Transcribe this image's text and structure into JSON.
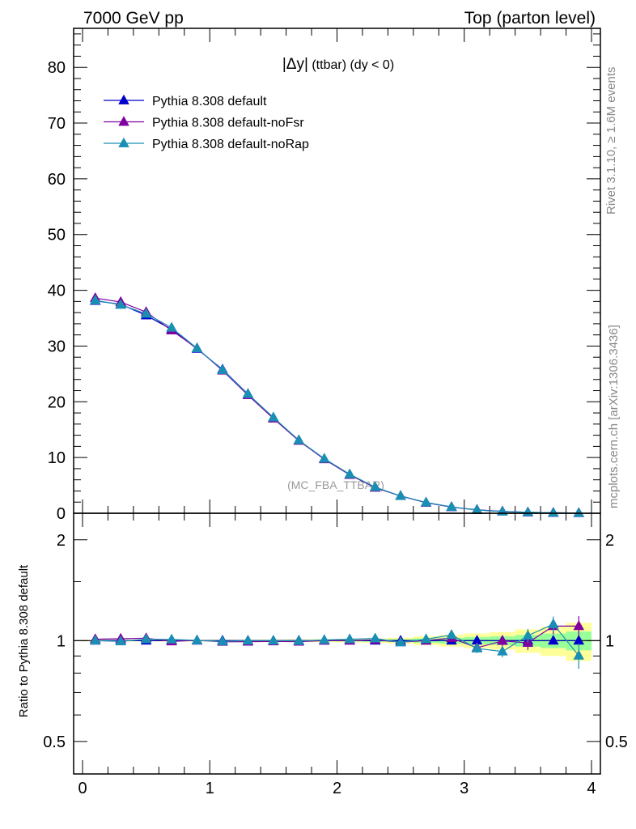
{
  "header": {
    "left": "7000 GeV pp",
    "right": "Top (parton level)"
  },
  "side": {
    "rivet": "Rivet 3.1.10, ≥ 1.6M events",
    "mcplots": "mcplots.cern.ch [arXiv:1306.3436]"
  },
  "title": {
    "main": "|Δy|",
    "sub": " (ttbar) (dy < 0)"
  },
  "watermark": "(MC_FBA_TTBAR)",
  "ratio_ylabel": "Ratio to Pythia 8.308 default",
  "colors": {
    "default": "#0000cc",
    "noFsr": "#8000a0",
    "noRap": "#1a8fb4",
    "band_yellow": "#ffff99",
    "band_green": "#99ff99"
  },
  "chart_data": [
    {
      "type": "line",
      "title": "|Δy| (ttbar) (dy < 0)",
      "xlabel": "",
      "ylabel": "",
      "xlim": [
        -0.07,
        4.07
      ],
      "ylim": [
        0,
        87
      ],
      "x_ticks": [
        "0",
        "1",
        "2",
        "3",
        "4"
      ],
      "y_ticks": [
        "0",
        "10",
        "20",
        "30",
        "40",
        "50",
        "60",
        "70",
        "80"
      ],
      "legend": "top-left",
      "x": [
        0.1,
        0.3,
        0.5,
        0.7,
        0.9,
        1.1,
        1.3,
        1.5,
        1.7,
        1.9,
        2.1,
        2.3,
        2.5,
        2.7,
        2.9,
        3.1,
        3.3,
        3.5,
        3.7,
        3.9
      ],
      "series": [
        {
          "name": "Pythia 8.308 default",
          "values": [
            38.1,
            37.5,
            35.5,
            33.0,
            29.5,
            25.8,
            21.4,
            17.1,
            13.1,
            9.7,
            6.9,
            4.6,
            3.1,
            1.9,
            1.1,
            0.62,
            0.33,
            0.17,
            0.08,
            0.04
          ]
        },
        {
          "name": "Pythia 8.308 default-noFsr",
          "values": [
            38.6,
            37.9,
            36.1,
            32.8,
            29.6,
            25.6,
            21.2,
            17.0,
            13.0,
            9.7,
            6.9,
            4.6,
            3.1,
            1.9,
            1.12,
            0.59,
            0.33,
            0.16,
            0.09,
            0.045
          ]
        },
        {
          "name": "Pythia 8.308 default-noRap",
          "values": [
            38.2,
            37.4,
            35.8,
            33.3,
            29.6,
            25.7,
            21.4,
            17.2,
            13.1,
            9.8,
            7.0,
            4.7,
            3.1,
            1.95,
            1.14,
            0.58,
            0.31,
            0.18,
            0.09,
            0.036
          ]
        }
      ]
    },
    {
      "type": "line",
      "title": "",
      "xlabel": "",
      "ylabel": "Ratio to Pythia 8.308 default",
      "xlim": [
        -0.07,
        4.07
      ],
      "ylim": [
        0.4,
        2.4
      ],
      "log_y": true,
      "x_ticks": [
        "0",
        "1",
        "2",
        "3",
        "4"
      ],
      "y_ticks": [
        "0.5",
        "1",
        "2"
      ],
      "x": [
        0.1,
        0.3,
        0.5,
        0.7,
        0.9,
        1.1,
        1.3,
        1.5,
        1.7,
        1.9,
        2.1,
        2.3,
        2.5,
        2.7,
        2.9,
        3.1,
        3.3,
        3.5,
        3.7,
        3.9
      ],
      "band_yellow": [
        0.005,
        0.006,
        0.006,
        0.006,
        0.006,
        0.007,
        0.007,
        0.008,
        0.009,
        0.01,
        0.012,
        0.015,
        0.02,
        0.03,
        0.04,
        0.05,
        0.06,
        0.08,
        0.1,
        0.13
      ],
      "band_green": [
        0.003,
        0.003,
        0.003,
        0.003,
        0.003,
        0.004,
        0.004,
        0.004,
        0.005,
        0.005,
        0.006,
        0.008,
        0.01,
        0.015,
        0.02,
        0.025,
        0.03,
        0.04,
        0.05,
        0.065
      ],
      "series": [
        {
          "name": "Pythia 8.308 default",
          "values": [
            1,
            1,
            1,
            1,
            1,
            1,
            1,
            1,
            1,
            1,
            1,
            1,
            1,
            1,
            1,
            1,
            1,
            1,
            1,
            1
          ]
        },
        {
          "name": "Pythia 8.308 default-noFsr",
          "values": [
            1.01,
            1.013,
            1.017,
            0.995,
            1.002,
            0.992,
            0.993,
            0.995,
            0.993,
            1.0,
            1.0,
            1.005,
            0.99,
            1.0,
            1.018,
            0.952,
            0.998,
            0.985,
            1.105,
            1.105
          ]
        },
        {
          "name": "Pythia 8.308 default-noRap",
          "values": [
            1.0,
            0.995,
            1.01,
            1.008,
            1.002,
            0.995,
            1.0,
            1.0,
            0.998,
            1.005,
            1.01,
            1.015,
            0.988,
            1.01,
            1.04,
            0.948,
            0.928,
            1.035,
            1.12,
            0.902
          ]
        }
      ]
    }
  ]
}
